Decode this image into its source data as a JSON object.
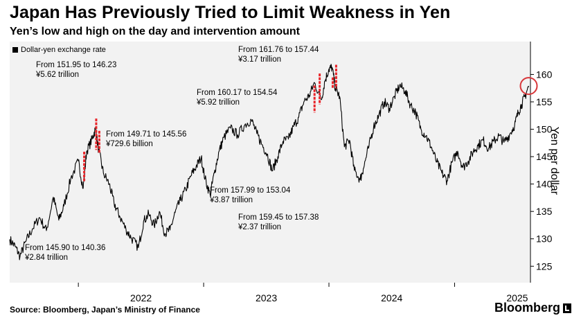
{
  "title": "Japan Has Previously Tried to Limit Weakness in Yen",
  "subtitle": "Yen’s low and high on the day and intervention amount",
  "source": "Source: Bloomberg, Japan’s Ministry of Finance",
  "brand": "Bloomberg",
  "colors": {
    "line": "#000000",
    "intervention": "#e8252a",
    "highlight_circle": "#d8363a",
    "background": "#f2f2f2"
  },
  "chart_data": {
    "type": "line",
    "title": "Japan Has Previously Tried to Limit Weakness in Yen",
    "subtitle": "Yen’s low and high on the day and intervention amount",
    "ylabel": "Yen per dollar",
    "ylim": [
      122,
      166
    ],
    "yticks": [
      125,
      130,
      135,
      140,
      145,
      150,
      155,
      160
    ],
    "xlim": [
      "2021-06-15",
      "2025-08-10"
    ],
    "xticks": [
      {
        "label": "2022",
        "date": "2022-01-01"
      },
      {
        "label": "2023",
        "date": "2023-01-01"
      },
      {
        "label": "2024",
        "date": "2024-01-01"
      },
      {
        "label": "2025",
        "date": "2025-01-01"
      }
    ],
    "legend": {
      "label": "Dollar-yen exchange rate",
      "position": "top-left"
    },
    "grid": false,
    "series": [
      {
        "name": "Dollar-yen exchange rate",
        "points": [
          [
            "2021-06-15",
            129.9
          ],
          [
            "2021-07-01",
            128.6
          ],
          [
            "2021-07-15",
            126.8
          ],
          [
            "2021-08-01",
            129.5
          ],
          [
            "2021-08-20",
            131.8
          ],
          [
            "2021-09-10",
            133.9
          ],
          [
            "2021-09-30",
            131.5
          ],
          [
            "2021-10-20",
            137.6
          ],
          [
            "2021-11-05",
            133.4
          ],
          [
            "2021-11-20",
            136.0
          ],
          [
            "2021-12-10",
            141.0
          ],
          [
            "2022-01-01",
            144.2
          ],
          [
            "2022-01-15",
            139.2
          ],
          [
            "2022-01-25",
            145.9
          ],
          [
            "2022-02-10",
            148.2
          ],
          [
            "2022-02-20",
            150.1
          ],
          [
            "2022-03-01",
            146.2
          ],
          [
            "2022-03-15",
            142.0
          ],
          [
            "2022-04-01",
            140.0
          ],
          [
            "2022-04-15",
            136.5
          ],
          [
            "2022-05-01",
            134.2
          ],
          [
            "2022-05-20",
            131.7
          ],
          [
            "2022-06-05",
            130.1
          ],
          [
            "2022-06-25",
            128.4
          ],
          [
            "2022-07-10",
            133.2
          ],
          [
            "2022-07-25",
            134.5
          ],
          [
            "2022-08-10",
            132.4
          ],
          [
            "2022-08-25",
            135.0
          ],
          [
            "2022-09-10",
            131.0
          ],
          [
            "2022-09-25",
            131.6
          ],
          [
            "2022-10-10",
            134.8
          ],
          [
            "2022-10-25",
            137.0
          ],
          [
            "2022-11-10",
            139.0
          ],
          [
            "2022-11-25",
            141.5
          ],
          [
            "2022-12-10",
            143.2
          ],
          [
            "2022-12-25",
            144.8
          ],
          [
            "2023-01-05",
            141.0
          ],
          [
            "2023-01-20",
            138.0
          ],
          [
            "2023-02-01",
            142.0
          ],
          [
            "2023-02-15",
            146.0
          ],
          [
            "2023-03-01",
            148.5
          ],
          [
            "2023-03-20",
            150.2
          ],
          [
            "2023-04-10",
            149.0
          ],
          [
            "2023-05-01",
            150.8
          ],
          [
            "2023-05-20",
            151.7
          ],
          [
            "2023-06-05",
            149.2
          ],
          [
            "2023-06-20",
            147.2
          ],
          [
            "2023-07-05",
            145.5
          ],
          [
            "2023-07-20",
            142.4
          ],
          [
            "2023-08-05",
            145.0
          ],
          [
            "2023-08-20",
            147.8
          ],
          [
            "2023-09-05",
            148.2
          ],
          [
            "2023-09-20",
            150.5
          ],
          [
            "2023-10-05",
            152.2
          ],
          [
            "2023-10-20",
            155.0
          ],
          [
            "2023-11-05",
            156.2
          ],
          [
            "2023-11-20",
            158.5
          ],
          [
            "2023-12-10",
            155.4
          ],
          [
            "2023-12-20",
            158.8
          ],
          [
            "2024-01-01",
            161.0
          ],
          [
            "2024-01-10",
            161.3
          ],
          [
            "2024-01-20",
            157.4
          ],
          [
            "2024-02-01",
            156.0
          ],
          [
            "2024-02-15",
            146.8
          ],
          [
            "2024-03-01",
            148.0
          ],
          [
            "2024-03-15",
            142.5
          ],
          [
            "2024-04-01",
            140.8
          ],
          [
            "2024-04-10",
            142.8
          ],
          [
            "2024-04-25",
            146.5
          ],
          [
            "2024-05-10",
            150.4
          ],
          [
            "2024-05-25",
            152.5
          ],
          [
            "2024-06-10",
            155.0
          ],
          [
            "2024-06-25",
            153.8
          ],
          [
            "2024-07-10",
            156.0
          ],
          [
            "2024-07-25",
            158.0
          ],
          [
            "2024-08-10",
            157.0
          ],
          [
            "2024-08-25",
            154.5
          ],
          [
            "2024-09-10",
            153.0
          ],
          [
            "2024-09-25",
            150.0
          ],
          [
            "2024-10-10",
            148.8
          ],
          [
            "2024-10-25",
            146.8
          ],
          [
            "2024-11-10",
            144.0
          ],
          [
            "2024-11-25",
            142.0
          ],
          [
            "2024-12-10",
            140.6
          ],
          [
            "2024-12-25",
            144.0
          ],
          [
            "2025-01-10",
            146.0
          ],
          [
            "2025-01-25",
            143.0
          ],
          [
            "2025-02-10",
            144.2
          ],
          [
            "2025-02-25",
            146.0
          ],
          [
            "2025-03-10",
            147.0
          ],
          [
            "2025-03-25",
            148.0
          ],
          [
            "2025-04-10",
            146.5
          ],
          [
            "2025-04-25",
            147.8
          ],
          [
            "2025-05-10",
            148.8
          ],
          [
            "2025-05-25",
            147.6
          ],
          [
            "2025-06-10",
            149.0
          ],
          [
            "2025-06-25",
            150.8
          ],
          [
            "2025-07-05",
            153.0
          ],
          [
            "2025-07-15",
            154.5
          ],
          [
            "2025-07-25",
            156.0
          ],
          [
            "2025-08-05",
            157.9
          ]
        ]
      }
    ],
    "interventions": [
      {
        "date": "2022-01-18",
        "low": 140.36,
        "high": 145.9
      },
      {
        "date": "2022-02-22",
        "low": 146.23,
        "high": 151.95
      },
      {
        "date": "2022-03-03",
        "low": 145.56,
        "high": 149.71
      },
      {
        "date": "2023-11-20",
        "low": 153.04,
        "high": 157.99
      },
      {
        "date": "2023-12-05",
        "low": 154.54,
        "high": 160.17
      },
      {
        "date": "2024-01-12",
        "low": 157.38,
        "high": 159.45
      },
      {
        "date": "2024-01-22",
        "low": 157.44,
        "high": 161.76
      }
    ],
    "highlight": {
      "date": "2025-08-05",
      "value": 157.9
    },
    "annotations": [
      {
        "line1": "From 151.95 to 146.23",
        "line2": "¥5.62 trillion"
      },
      {
        "line1": "From 149.71 to 145.56",
        "line2": "¥729.6 billion"
      },
      {
        "line1": "From 145.90 to 140.36",
        "line2": "¥2.84 trillion"
      },
      {
        "line1": "From 161.76 to 157.44",
        "line2": "¥3.17 trillion"
      },
      {
        "line1": "From 160.17 to 154.54",
        "line2": "¥5.92 trillion"
      },
      {
        "line1": "From 157.99 to 153.04",
        "line2": "¥3.87 trillion"
      },
      {
        "line1": "From 159.45 to 157.38",
        "line2": "¥2.37 trillion"
      }
    ]
  }
}
